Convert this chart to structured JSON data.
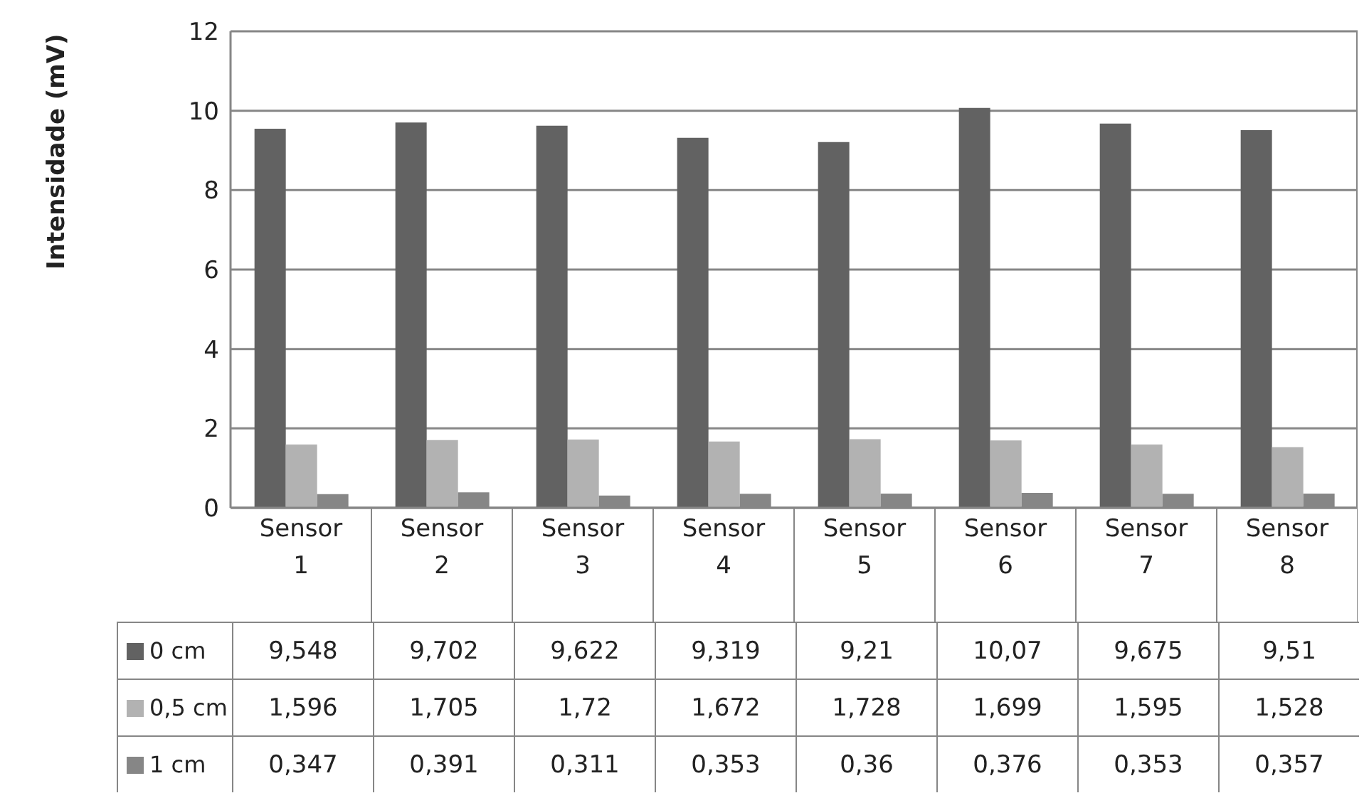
{
  "chart_data": {
    "type": "bar",
    "ylabel": "Intensidade (mV)",
    "categories": [
      "Sensor 1",
      "Sensor 2",
      "Sensor 3",
      "Sensor 4",
      "Sensor 5",
      "Sensor 6",
      "Sensor 7",
      "Sensor 8"
    ],
    "series": [
      {
        "name": "0 cm",
        "color": "#626262",
        "values": [
          9.548,
          9.702,
          9.622,
          9.319,
          9.21,
          10.07,
          9.675,
          9.51
        ],
        "value_labels": [
          "9,548",
          "9,702",
          "9,622",
          "9,319",
          "9,21",
          "10,07",
          "9,675",
          "9,51"
        ]
      },
      {
        "name": "0,5 cm",
        "color": "#b2b2b2",
        "values": [
          1.596,
          1.705,
          1.72,
          1.672,
          1.728,
          1.699,
          1.595,
          1.528
        ],
        "value_labels": [
          "1,596",
          "1,705",
          "1,72",
          "1,672",
          "1,728",
          "1,699",
          "1,595",
          "1,528"
        ]
      },
      {
        "name": "1 cm",
        "color": "#868686",
        "values": [
          0.347,
          0.391,
          0.311,
          0.353,
          0.36,
          0.376,
          0.353,
          0.357
        ],
        "value_labels": [
          "0,347",
          "0,391",
          "0,311",
          "0,353",
          "0,36",
          "0,376",
          "0,353",
          "0,357"
        ]
      }
    ],
    "ylim": [
      0,
      12
    ],
    "yticks": [
      0,
      2,
      4,
      6,
      8,
      10,
      12
    ],
    "grid": "y",
    "legend": "bottom"
  }
}
